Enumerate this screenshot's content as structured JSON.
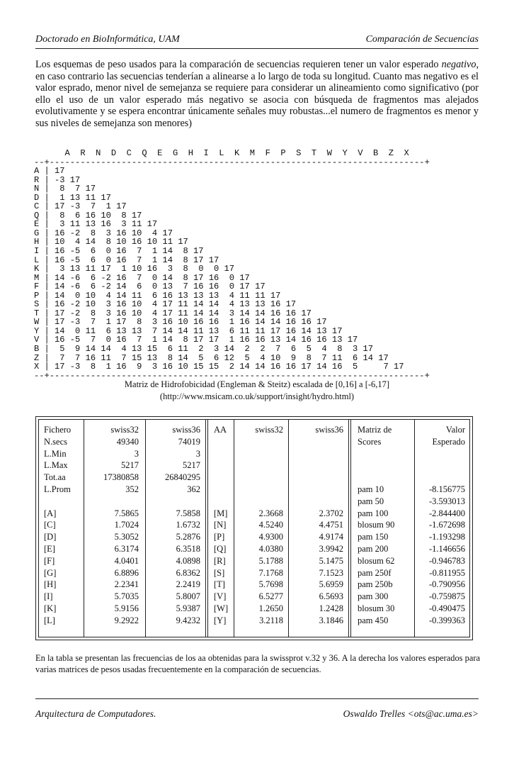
{
  "header": {
    "left": "Doctorado en BioInformática, UAM",
    "right": "Comparación de Secuencias"
  },
  "intro": {
    "before": "Los esquemas de peso usados para la comparación de secuencias requieren tener un valor esperado ",
    "emphasis": "negativo",
    "after": ", en caso contrario las secuencias tenderían a alinearse a lo largo de toda su longitud. Cuanto mas negativo es el valor esprado, menor nivel de semejanza se requiere para considerar un alineamiento como significativo (por ello el uso de un valor esperado más negativo se asocia con búsqueda de fragmentos mas alejados evolutivamente y se espera encontrar únicamente señales muy robustas...el numero de fragmentos es menor y sus niveles de semejanza son menores)"
  },
  "matrix": {
    "columns_line": "      A  R  N  D  C  Q  E  G  H  I  L  K  M  F  P  S  T  W  Y  V  B  Z  X",
    "rule_top": "--+-------------------------------------------------------------------------+",
    "rows": [
      "A | 17",
      "R | -3 17",
      "N |  8  7 17",
      "D |  1 13 11 17",
      "C | 17 -3  7  1 17",
      "Q |  8  6 16 10  8 17",
      "E |  3 11 13 16  3 11 17",
      "G | 16 -2  8  3 16 10  4 17",
      "H | 10  4 14  8 10 16 10 11 17",
      "I | 16 -5  6  0 16  7  1 14  8 17",
      "L | 16 -5  6  0 16  7  1 14  8 17 17",
      "K |  3 13 11 17  1 10 16  3  8  0  0 17",
      "M | 14 -6  6 -2 16  7  0 14  8 17 16  0 17",
      "F | 14 -6  6 -2 14  6  0 13  7 16 16  0 17 17",
      "P | 14  0 10  4 14 11  6 16 13 13 13  4 11 11 17",
      "S | 16 -2 10  3 16 10  4 17 11 14 14  4 13 13 16 17",
      "T | 17 -2  8  3 16 10  4 17 11 14 14  3 14 14 16 16 17",
      "W | 17 -3  7  1 17  8  3 16 10 16 16  1 16 14 14 16 16 17",
      "Y | 14  0 11  6 13 13  7 14 14 11 13  6 11 11 17 16 14 13 17",
      "V | 16 -5  7  0 16  7  1 14  8 17 17  1 16 16 13 14 16 16 13 17",
      "B |  5  9 14 14  4 13 15  6 11  2  3 14  2  2  7  6  5  4  8  3 17",
      "Z |  7  7 16 11  7 15 13  8 14  5  6 12  5  4 10  9  8  7 11  6 14 17",
      "X | 17 -3  8  1 16  9  3 16 10 15 15  2 14 14 16 16 17 14 16  5     7 17"
    ],
    "rule_bottom": "--+-------------------------------------------------------------------------+",
    "caption": "Matriz de Hidrofobicidad (Engleman & Steitz) escalada de [0,16] a [-6,17]",
    "source": "(http://www.msicam.co.uk/support/insight/hydro.html)"
  },
  "table": {
    "left": {
      "header": [
        "Fichero",
        "swiss32",
        "swiss36"
      ],
      "stats": [
        [
          "N.secs",
          "49340",
          "74019"
        ],
        [
          "L.Min",
          "3",
          "3"
        ],
        [
          "L.Max",
          "5217",
          "5217"
        ],
        [
          "Tot.aa",
          "17380858",
          "26840295"
        ],
        [
          "L.Prom",
          "352",
          "362"
        ]
      ],
      "composition": [
        [
          "[A]",
          "7.5865",
          "7.5858"
        ],
        [
          "[C]",
          "1.7024",
          "1.6732"
        ],
        [
          "[D]",
          "5.3052",
          "5.2876"
        ],
        [
          "[E]",
          "6.3174",
          "6.3518"
        ],
        [
          "[F]",
          "4.0401",
          "4.0898"
        ],
        [
          "[G]",
          "6.8896",
          "6.8362"
        ],
        [
          "[H]",
          "2.2341",
          "2.2419"
        ],
        [
          "[I]",
          "5.7035",
          "5.8007"
        ],
        [
          "[K]",
          "5.9156",
          "5.9387"
        ],
        [
          "[L]",
          "9.2922",
          "9.4232"
        ]
      ]
    },
    "middle": {
      "header": [
        "AA",
        "swiss32",
        "swiss36"
      ],
      "rows": [
        [
          "[M]",
          "2.3668",
          "2.3702"
        ],
        [
          "[N]",
          "4.5240",
          "4.4751"
        ],
        [
          "[P]",
          "4.9300",
          "4.9174"
        ],
        [
          "[Q]",
          "4.0380",
          "3.9942"
        ],
        [
          "[R]",
          "5.1788",
          "5.1475"
        ],
        [
          "[S]",
          "7.1768",
          "7.1523"
        ],
        [
          "[T]",
          "5.7698",
          "5.6959"
        ],
        [
          "[V]",
          "6.5277",
          "6.5693"
        ],
        [
          "[W]",
          "1.2650",
          "1.2428"
        ],
        [
          "[Y]",
          "3.2118",
          "3.1846"
        ]
      ]
    },
    "right": {
      "header": [
        [
          "Matriz de",
          "Scores"
        ],
        [
          "Valor",
          "Esperado"
        ]
      ],
      "rows": [
        [
          "pam 10",
          "-8.156775"
        ],
        [
          "pam 50",
          "-3.593013"
        ],
        [
          "pam 100",
          "-2.844400"
        ],
        [
          "blosum 90",
          "-1.672698"
        ],
        [
          "pam 150",
          "-1.193298"
        ],
        [
          "pam 200",
          "-1.146656"
        ],
        [
          "blosum 62",
          "-0.946783"
        ],
        [
          "pam 250f",
          "-0.811955"
        ],
        [
          "pam 250b",
          "-0.790956"
        ],
        [
          "pam 300",
          "-0.759875"
        ],
        [
          "blosum 30",
          "-0.490475"
        ],
        [
          "pam 450",
          "-0.399363"
        ]
      ]
    }
  },
  "note": "En la tabla se presentan las frecuencias de los aa obtenidas para la swissprot v.32 y 36. A la derecha los valores esperados para varias matrices de pesos usadas frecuentemente en la comparación de secuencias.",
  "footer": {
    "left": "Arquitectura de Computadores.",
    "right": "Oswaldo Trelles <ots@ac.uma.es>"
  }
}
